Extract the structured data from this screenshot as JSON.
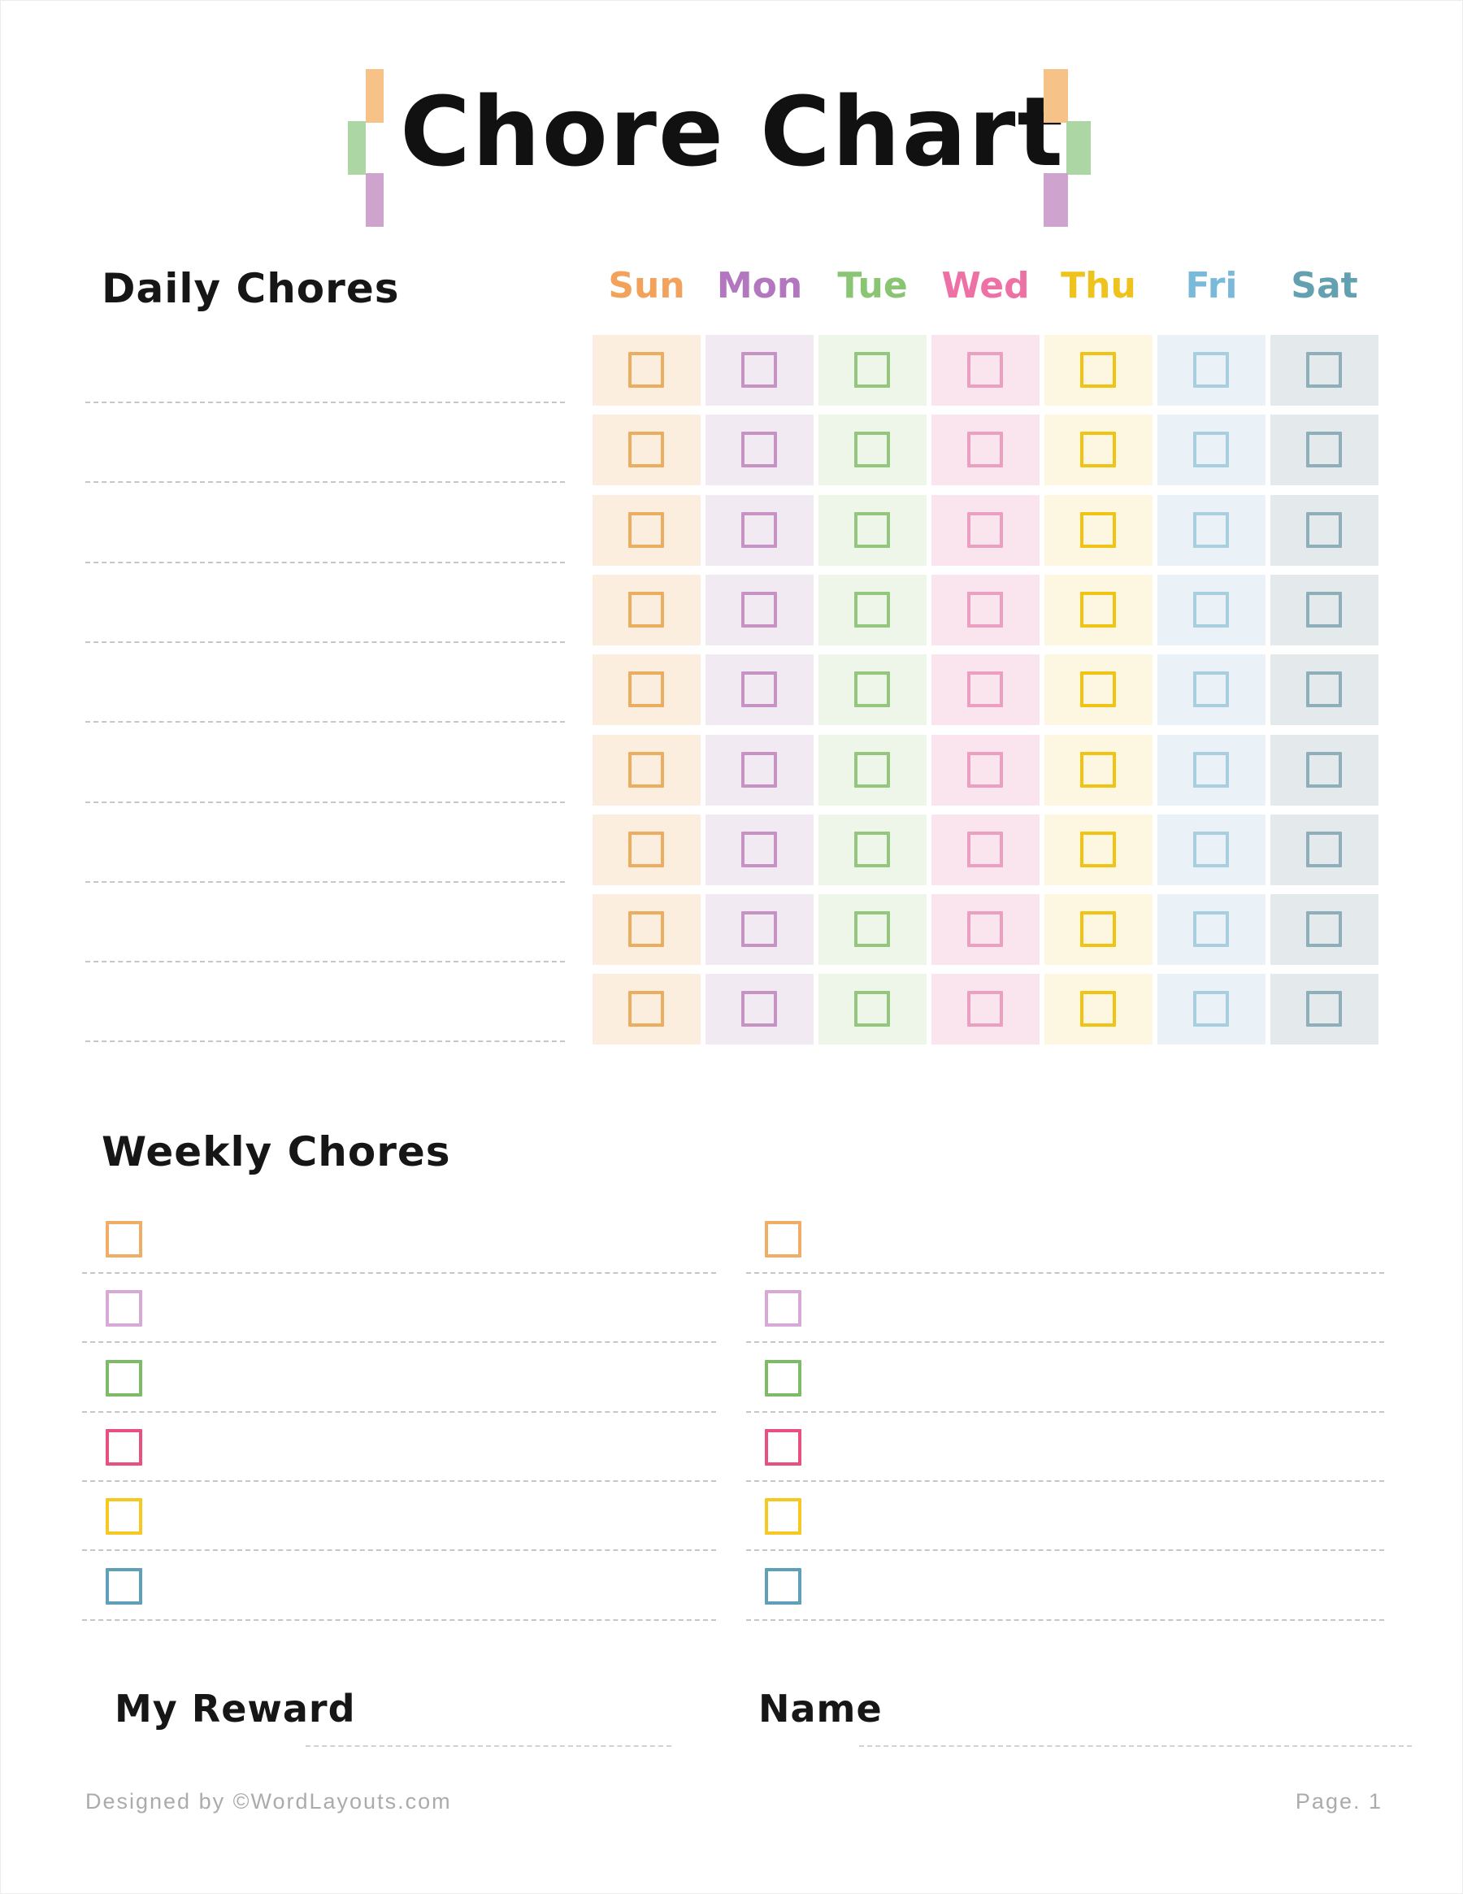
{
  "page": {
    "title": "Chore Chart",
    "background": "#ffffff"
  },
  "decoration": {
    "orange": "#F6C288",
    "green": "#ACD7A4",
    "purple": "#CEA3CD"
  },
  "daily": {
    "heading": "Daily Chores",
    "rows": 9,
    "line_color": "#c6c6c6",
    "days": [
      {
        "label": "Sun",
        "label_color": "#F2A25B",
        "cell_bg": "#FCEEDF",
        "box_border": "#EBAE61"
      },
      {
        "label": "Mon",
        "label_color": "#B277BE",
        "cell_bg": "#F2EAF3",
        "box_border": "#C793C5"
      },
      {
        "label": "Tue",
        "label_color": "#8AC573",
        "cell_bg": "#EEF5E9",
        "box_border": "#94C77E"
      },
      {
        "label": "Wed",
        "label_color": "#EE71A5",
        "cell_bg": "#FAE4EE",
        "box_border": "#EB9FC1"
      },
      {
        "label": "Thu",
        "label_color": "#EFC31D",
        "cell_bg": "#FDF7E2",
        "box_border": "#F0C315"
      },
      {
        "label": "Fri",
        "label_color": "#79B9D9",
        "cell_bg": "#EAF2F8",
        "box_border": "#A9CFDF"
      },
      {
        "label": "Sat",
        "label_color": "#63A0B0",
        "cell_bg": "#E4EAEB",
        "box_border": "#8EAFB9"
      }
    ]
  },
  "weekly": {
    "heading": "Weekly Chores",
    "columns": 2,
    "rows_per_column": 6,
    "line_color": "#c6c6c6",
    "checkbox_colors": [
      "#F0AD66",
      "#D8A8D6",
      "#7DBB66",
      "#E8517F",
      "#F5C822",
      "#5F9FB8"
    ]
  },
  "fields": {
    "my_reward_label": "My Reward",
    "name_label": "Name"
  },
  "footer": {
    "left": "Designed by ©WordLayouts.com",
    "right": "Page. 1"
  }
}
